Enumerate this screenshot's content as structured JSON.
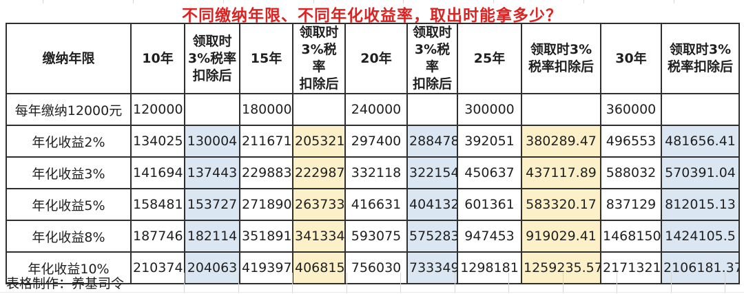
{
  "colors": {
    "title_red": "#dd2222",
    "border": "#2e2e2e",
    "text": "#1f1f1f",
    "blue_fill": "#dae6f2",
    "yellow_fill": "#fcf0c8"
  },
  "footer": {
    "credit": "表格制作：养基司令"
  },
  "chart_data": {
    "type": "table",
    "title": "不同缴纳年限、不同年化收益率，取出时能拿多少？",
    "columns": [
      "缴纳年限",
      "10年",
      "领取时\n3%税率\n扣除后",
      "15年",
      "领取时\n3%税率\n扣除后",
      "20年",
      "领取时\n3%税率\n扣除后",
      "25年",
      "领取时3%\n税率扣除后",
      "30年",
      "领取时3%\n税率扣除后"
    ],
    "rows": [
      [
        "每年缴纳12000元",
        "120000",
        "",
        "180000",
        "",
        "240000",
        "",
        "300000",
        "",
        "360000",
        ""
      ],
      [
        "年化收益2%",
        "134025",
        "130004",
        "211671",
        "205321",
        "297400",
        "288478",
        "392051",
        "380289.47",
        "496553",
        "481656.41"
      ],
      [
        "年化收益3%",
        "141694",
        "137443",
        "229883",
        "222987",
        "332118",
        "322154",
        "450637",
        "437117.89",
        "588032",
        "570391.04"
      ],
      [
        "年化收益5%",
        "158481",
        "153727",
        "271890",
        "263733",
        "416631",
        "404132",
        "601361",
        "583320.17",
        "837129",
        "812015.13"
      ],
      [
        "年化收益8%",
        "187746",
        "182114",
        "351891",
        "341334",
        "593075",
        "575283",
        "947453",
        "919029.41",
        "1468150",
        "1424105.5"
      ],
      [
        "年化收益10%",
        "210374",
        "204063",
        "419397",
        "406815",
        "756030",
        "733349",
        "1298181",
        "1259235.57",
        "2171321",
        "2106181.37"
      ]
    ],
    "highlights": {
      "blue_columns": [
        2,
        6,
        10
      ],
      "yellow_columns": [
        4,
        8
      ],
      "fills_start_at_row": 1
    }
  }
}
